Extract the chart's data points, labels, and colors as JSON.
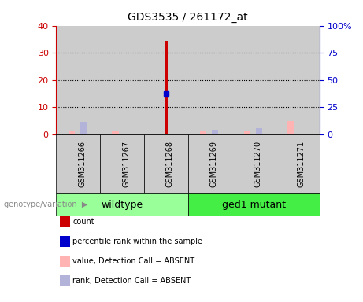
{
  "title": "GDS3535 / 261172_at",
  "samples": [
    "GSM311266",
    "GSM311267",
    "GSM311268",
    "GSM311269",
    "GSM311270",
    "GSM311271"
  ],
  "count_values": [
    0,
    0,
    34.5,
    0,
    0,
    0
  ],
  "percentile_values": [
    0,
    0,
    15,
    0,
    0,
    0
  ],
  "value_absent": [
    1.2,
    1.0,
    0,
    1.0,
    1.0,
    4.8
  ],
  "rank_absent": [
    4.5,
    0,
    0,
    1.8,
    2.2,
    0
  ],
  "ylim_left": [
    0,
    40
  ],
  "ylim_right": [
    0,
    100
  ],
  "yticks_left": [
    0,
    10,
    20,
    30,
    40
  ],
  "yticks_right": [
    0,
    25,
    50,
    75,
    100
  ],
  "yticklabels_left": [
    "0",
    "10",
    "20",
    "30",
    "40"
  ],
  "yticklabels_right": [
    "0",
    "25",
    "50",
    "75",
    "100%"
  ],
  "dotted_lines": [
    10,
    20,
    30
  ],
  "wildtype_range": [
    0,
    3
  ],
  "mutant_range": [
    3,
    6
  ],
  "colors": {
    "count": "#cc0000",
    "percentile": "#0000cc",
    "value_absent": "#ffb3b3",
    "rank_absent": "#b3b3d9",
    "wildtype_bg": "#99ff99",
    "mutant_bg": "#44ee44",
    "sample_bg": "#cccccc",
    "axis_left": "#cc0000",
    "axis_right": "#0000cc",
    "bg": "#ffffff"
  },
  "legend_items": [
    {
      "color": "#cc0000",
      "label": "count"
    },
    {
      "color": "#0000cc",
      "label": "percentile rank within the sample"
    },
    {
      "color": "#ffb3b3",
      "label": "value, Detection Call = ABSENT"
    },
    {
      "color": "#b3b3d9",
      "label": "rank, Detection Call = ABSENT"
    }
  ]
}
